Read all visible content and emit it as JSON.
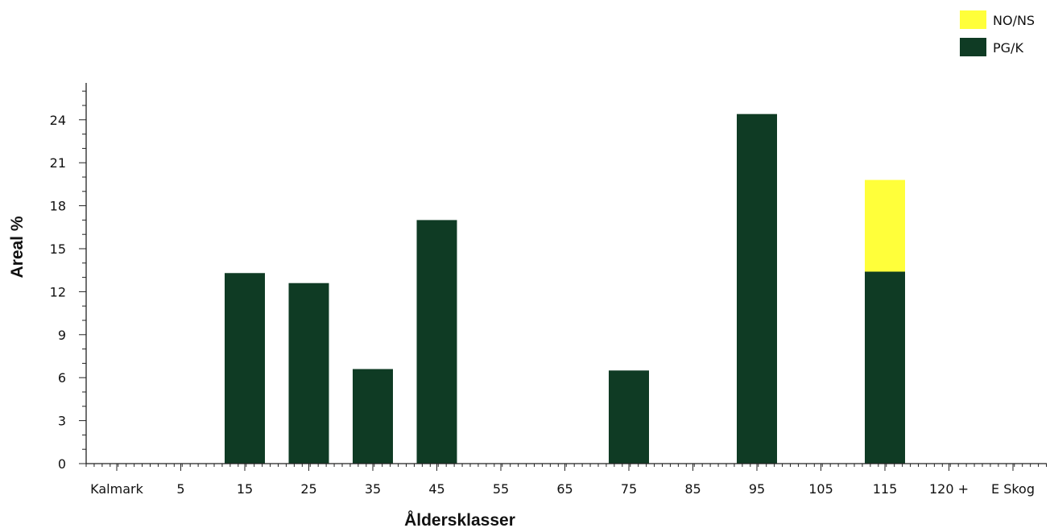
{
  "chart_data": {
    "type": "bar",
    "stacked": true,
    "title": "",
    "xlabel": "Åldersklasser",
    "ylabel": "Areal %",
    "categories": [
      "Kalmark",
      "5",
      "15",
      "25",
      "35",
      "45",
      "55",
      "65",
      "75",
      "85",
      "95",
      "105",
      "115",
      "120 +",
      "E Skog"
    ],
    "ylim": [
      0,
      27
    ],
    "yticks": [
      0,
      3,
      6,
      9,
      12,
      15,
      18,
      21,
      24
    ],
    "grid": false,
    "legend_position": "top-right",
    "series": [
      {
        "name": "PG/K",
        "color": "#0f3b24",
        "values": [
          0,
          0,
          13.3,
          12.6,
          6.6,
          17.0,
          0,
          0,
          6.5,
          0,
          24.4,
          0,
          13.4,
          0,
          0
        ]
      },
      {
        "name": "NO/NS",
        "color": "#ffff3a",
        "values": [
          0,
          0,
          0,
          0,
          0,
          0,
          0,
          0,
          0,
          0,
          0,
          0,
          6.4,
          0,
          0
        ]
      }
    ],
    "legend": [
      {
        "label": "NO/NS",
        "color": "#ffff3a"
      },
      {
        "label": "PG/K",
        "color": "#0f3b24"
      }
    ]
  }
}
